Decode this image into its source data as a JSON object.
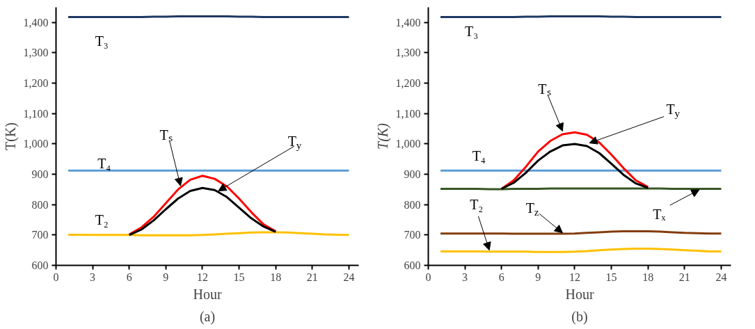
{
  "chart_data": [
    {
      "type": "line",
      "title": "(a)",
      "xlabel": "Hour",
      "ylabel": "T(K)",
      "x": [
        1,
        2,
        3,
        4,
        5,
        6,
        7,
        8,
        9,
        10,
        11,
        12,
        13,
        14,
        15,
        16,
        17,
        18,
        19,
        20,
        21,
        22,
        23,
        24
      ],
      "xlim": [
        0,
        24.8
      ],
      "xticks": [
        0,
        3,
        6,
        9,
        12,
        15,
        18,
        21,
        24
      ],
      "ylim": [
        600,
        1450
      ],
      "yticks": [
        {
          "value": 600,
          "label": "600"
        },
        {
          "value": 700,
          "label": "700"
        },
        {
          "value": 800,
          "label": "800"
        },
        {
          "value": 900,
          "label": "900"
        },
        {
          "value": 1000,
          "label": "1,000"
        },
        {
          "value": 1100,
          "label": "1,100"
        },
        {
          "value": 1200,
          "label": "1,200"
        },
        {
          "value": 1300,
          "label": "1,300"
        },
        {
          "value": 1400,
          "label": "1,400"
        }
      ],
      "grid": false,
      "legend": false,
      "series": [
        {
          "name": "T₃",
          "color": "#1f3864",
          "values": [
            1418,
            1418,
            1418,
            1418,
            1418,
            1418,
            1418,
            1419,
            1419,
            1420,
            1420,
            1420,
            1420,
            1420,
            1419,
            1419,
            1418,
            1418,
            1418,
            1418,
            1418,
            1418,
            1418,
            1418
          ]
        },
        {
          "name": "T₄",
          "color": "#5b9bd5",
          "values": [
            912,
            912,
            912,
            912,
            912,
            912,
            912,
            912,
            912,
            912,
            912,
            912,
            912,
            912,
            912,
            912,
            912,
            912,
            912,
            912,
            912,
            912,
            912,
            912
          ]
        },
        {
          "name": "T₂",
          "color": "#ffc000",
          "values": [
            701,
            701,
            700,
            700,
            700,
            700,
            699,
            699,
            699,
            699,
            699,
            700,
            702,
            704,
            706,
            708,
            709,
            709,
            708,
            706,
            704,
            702,
            701,
            700
          ]
        },
        {
          "name": "Tₛ",
          "color": "#ff0000",
          "x": [
            6,
            7,
            8,
            9,
            10,
            11,
            12,
            13,
            14,
            15,
            16,
            17,
            18
          ],
          "values": [
            702,
            725,
            760,
            805,
            850,
            882,
            895,
            885,
            860,
            820,
            775,
            735,
            712
          ]
        },
        {
          "name": "T$_{y}$",
          "color": "#000000",
          "x": [
            6,
            7,
            8,
            9,
            10,
            11,
            12,
            13,
            14,
            15,
            16,
            17,
            18
          ],
          "values": [
            700,
            718,
            748,
            785,
            820,
            845,
            855,
            848,
            825,
            790,
            755,
            728,
            710
          ]
        }
      ]
    },
    {
      "type": "line",
      "title": "(b)",
      "xlabel": "Hour",
      "ylabel": "T(K)",
      "x": [
        1,
        2,
        3,
        4,
        5,
        6,
        7,
        8,
        9,
        10,
        11,
        12,
        13,
        14,
        15,
        16,
        17,
        18,
        19,
        20,
        21,
        22,
        23,
        24
      ],
      "xlim": [
        0,
        24.8
      ],
      "xticks": [
        0,
        3,
        6,
        9,
        12,
        15,
        18,
        21,
        24
      ],
      "ylim": [
        600,
        1450
      ],
      "yticks": [
        {
          "value": 600,
          "label": "600"
        },
        {
          "value": 700,
          "label": "700"
        },
        {
          "value": 800,
          "label": "800"
        },
        {
          "value": 900,
          "label": "900"
        },
        {
          "value": 1000,
          "label": "1,000"
        },
        {
          "value": 1100,
          "label": "1,100"
        },
        {
          "value": 1200,
          "label": "1,200"
        },
        {
          "value": 1300,
          "label": "1,300"
        },
        {
          "value": 1400,
          "label": "1,400"
        }
      ],
      "grid": false,
      "legend": false,
      "series": [
        {
          "name": "T₃",
          "color": "#1f3864",
          "values": [
            1418,
            1418,
            1418,
            1418,
            1418,
            1418,
            1418,
            1419,
            1419,
            1420,
            1420,
            1420,
            1420,
            1420,
            1419,
            1419,
            1418,
            1418,
            1418,
            1418,
            1418,
            1418,
            1418,
            1418
          ]
        },
        {
          "name": "T₄",
          "color": "#5b9bd5",
          "values": [
            912,
            912,
            912,
            912,
            912,
            912,
            912,
            912,
            912,
            912,
            912,
            912,
            912,
            912,
            912,
            912,
            912,
            912,
            912,
            912,
            912,
            912,
            912,
            912
          ]
        },
        {
          "name": "Tₓ",
          "color": "#375623",
          "values": [
            852,
            852,
            852,
            852,
            851,
            851,
            852,
            852,
            852,
            853,
            853,
            853,
            853,
            853,
            853,
            853,
            853,
            853,
            853,
            852,
            852,
            852,
            852,
            852
          ]
        },
        {
          "name": "T$_{z}$",
          "color": "#843c0c",
          "values": [
            705,
            705,
            705,
            705,
            705,
            705,
            704,
            704,
            704,
            704,
            704,
            705,
            707,
            709,
            711,
            712,
            712,
            712,
            711,
            709,
            707,
            706,
            705,
            705
          ]
        },
        {
          "name": "T₂",
          "color": "#ffc000",
          "values": [
            646,
            646,
            646,
            646,
            645,
            645,
            645,
            645,
            644,
            644,
            644,
            645,
            647,
            650,
            652,
            654,
            655,
            655,
            654,
            652,
            650,
            648,
            646,
            646
          ]
        },
        {
          "name": "Tₛ",
          "color": "#ff0000",
          "x": [
            6,
            7,
            8,
            9,
            10,
            11,
            12,
            13,
            14,
            15,
            16,
            17,
            18
          ],
          "values": [
            852,
            880,
            925,
            975,
            1010,
            1032,
            1038,
            1030,
            1005,
            965,
            920,
            880,
            858
          ]
        },
        {
          "name": "T$_{y}$",
          "color": "#000000",
          "x": [
            6,
            7,
            8,
            9,
            10,
            11,
            12,
            13,
            14,
            15,
            16,
            17,
            18
          ],
          "values": [
            852,
            872,
            905,
            945,
            975,
            995,
            1000,
            993,
            970,
            935,
            898,
            870,
            855
          ]
        }
      ]
    }
  ]
}
